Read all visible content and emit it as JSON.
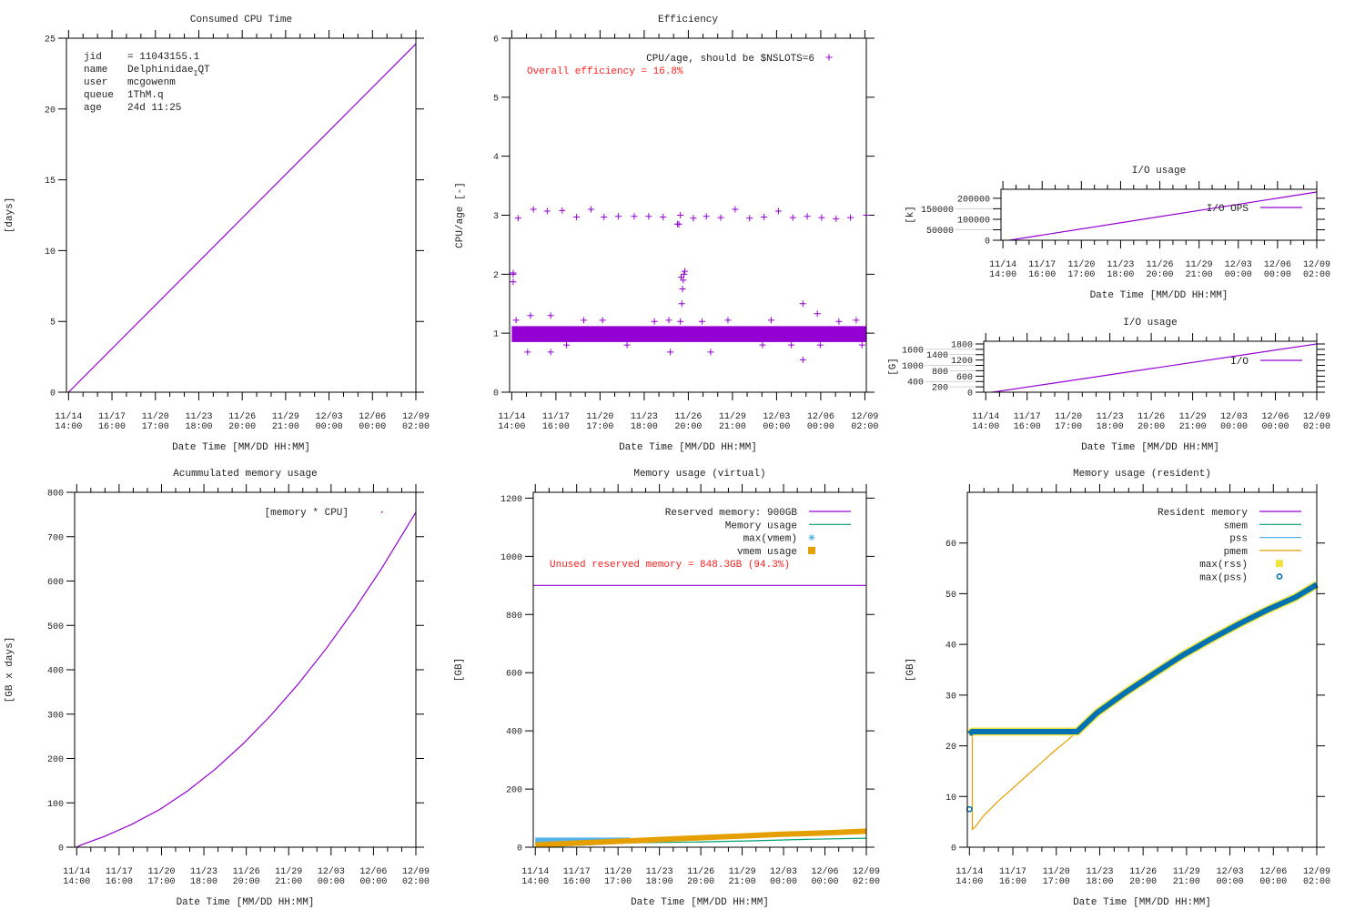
{
  "colors": {
    "purple": "#9400d3",
    "green": "#009e73",
    "lightblue": "#56b4e9",
    "orange": "#e69f00",
    "yellow": "#f0e442",
    "blue": "#0072b2",
    "red": "#ff2020"
  },
  "xtick_labels": [
    [
      "11/14",
      "14:00"
    ],
    [
      "11/17",
      "16:00"
    ],
    [
      "11/20",
      "17:00"
    ],
    [
      "11/23",
      "18:00"
    ],
    [
      "11/26",
      "20:00"
    ],
    [
      "11/29",
      "21:00"
    ],
    [
      "12/03",
      "00:00"
    ],
    [
      "12/06",
      "00:00"
    ],
    [
      "12/09",
      "02:00"
    ]
  ],
  "job_info": {
    "jid_key": "jid",
    "jid_val": "= 11043155.1",
    "name_key": "name",
    "name_main": "Delphinidae",
    "name_sub": "I",
    "name_rest": "QT",
    "user_key": "user",
    "user_val": "mcgowenm",
    "queue_key": "queue",
    "queue_val": "1ThM.q",
    "age_key": "age",
    "age_val": "24d 11:25"
  },
  "annotations": {
    "efficiency": "Overall efficiency = 16.8%",
    "unused": "Unused reserved memory = 848.3GB (94.3%)"
  },
  "chart_data": [
    {
      "id": "cpu",
      "type": "line",
      "title": "Consumed CPU Time",
      "xlabel": "Date Time [MM/DD HH:MM]",
      "ylabel": "[days]",
      "xlim": [
        -0.15,
        24.5
      ],
      "ylim": [
        0,
        25
      ],
      "yticks": [
        0,
        5,
        10,
        15,
        20,
        25
      ],
      "series": [
        {
          "name": "",
          "color": "purple",
          "style": "line",
          "x": [
            0,
            24.5
          ],
          "y": [
            0,
            24.6
          ]
        }
      ],
      "legend": []
    },
    {
      "id": "eff",
      "type": "scatter",
      "title": "Efficiency",
      "xlabel": "Date Time [MM/DD HH:MM]",
      "ylabel": "CPU/age [-]",
      "xlim": [
        -0.15,
        24.6
      ],
      "ylim": [
        0,
        6
      ],
      "yticks": [
        0,
        1,
        2,
        3,
        4,
        5,
        6
      ],
      "band": {
        "low": 0.85,
        "high": 1.12,
        "color": "purple"
      },
      "series": [
        {
          "name": "CPU/age, should be $NSLOTS=6",
          "color": "purple",
          "style": "plus",
          "x": [
            0.1,
            0.1,
            0.1,
            0.44,
            1.5,
            2.46,
            3.5,
            4.5,
            5.5,
            6.4,
            7.4,
            8.5,
            9.5,
            10.5,
            11.5,
            11.6,
            11.7,
            12.6,
            13.5,
            14.5,
            15.5,
            16.5,
            17.5,
            18.5,
            19.5,
            20.5,
            21.5,
            22.5,
            23.5,
            24.6,
            11.8,
            11.85,
            11.9,
            11.95,
            12.0,
            11.75,
            11.7,
            20.2,
            20.2,
            21.2,
            1.3,
            2.7,
            1.1,
            2.7,
            11.0,
            13.8,
            0.3,
            5.0,
            15.0,
            18.0,
            23.9,
            21.4,
            8.0,
            17.4,
            24.3,
            3.8,
            9.9,
            13.2,
            19.4,
            6.3,
            22.7,
            10.9
          ],
          "y": [
            2.0,
            2.02,
            1.87,
            2.95,
            3.1,
            3.07,
            3.08,
            2.97,
            3.1,
            2.97,
            2.98,
            2.98,
            2.98,
            2.97,
            2.85,
            2.85,
            3.0,
            2.95,
            2.98,
            2.96,
            3.1,
            2.95,
            2.97,
            3.07,
            2.96,
            2.98,
            2.96,
            2.94,
            2.96,
            3.0,
            1.5,
            1.75,
            1.9,
            2.0,
            2.05,
            1.95,
            1.2,
            0.55,
            1.5,
            1.33,
            1.3,
            1.3,
            0.68,
            0.68,
            0.68,
            0.68,
            1.22,
            1.22,
            1.22,
            1.22,
            1.22,
            0.8,
            0.8,
            0.8,
            0.8,
            0.8,
            1.2,
            1.2,
            0.8,
            1.22,
            1.2,
            1.22
          ]
        }
      ],
      "legend": [
        {
          "label": "CPU/age, should be $NSLOTS=6",
          "color": "purple",
          "style": "plus"
        }
      ]
    },
    {
      "id": "ioops",
      "type": "line",
      "title": "I/O usage",
      "xlabel": "Date Time [MM/DD HH:MM]",
      "ylabel": "[k]",
      "xlim": [
        -0.15,
        24.5
      ],
      "ylim": [
        0,
        243000
      ],
      "yticks": [
        0,
        50000,
        100000,
        150000,
        200000
      ],
      "series": [
        {
          "name": "I/O OPS",
          "color": "purple",
          "style": "line",
          "x": [
            0.5,
            24.5
          ],
          "y": [
            0,
            230000
          ]
        }
      ],
      "legend": [
        {
          "label": "I/O OPS",
          "color": "purple",
          "style": "line"
        }
      ]
    },
    {
      "id": "io",
      "type": "line",
      "title": "I/O usage",
      "xlabel": "Date Time [MM/DD HH:MM]",
      "ylabel": "[G]",
      "xlim": [
        -0.15,
        24.5
      ],
      "ylim": [
        0,
        1900
      ],
      "yticks": [
        0,
        200,
        400,
        600,
        800,
        1000,
        1200,
        1400,
        1600,
        1800
      ],
      "series": [
        {
          "name": "I/O",
          "color": "purple",
          "style": "line",
          "x": [
            0.5,
            24.5
          ],
          "y": [
            0,
            1800
          ]
        }
      ],
      "legend": [
        {
          "label": "I/O",
          "color": "purple",
          "style": "line"
        }
      ]
    },
    {
      "id": "accum",
      "type": "line",
      "title": "Acummulated memory usage",
      "xlabel": "Date Time [MM/DD HH:MM]",
      "ylabel": "[GB x days]",
      "xlim": [
        -0.15,
        24.5
      ],
      "ylim": [
        0,
        800
      ],
      "yticks": [
        0,
        100,
        200,
        300,
        400,
        500,
        600,
        700,
        800
      ],
      "series": [
        {
          "name": "[memory * CPU]",
          "color": "purple",
          "style": "line",
          "x": [
            0,
            0.3,
            2,
            4,
            6,
            8,
            10,
            12,
            14,
            16,
            18,
            20,
            22,
            24.5
          ],
          "y": [
            0,
            5,
            24.2,
            51.9,
            85.1,
            126.7,
            175.8,
            232.4,
            296.4,
            367.8,
            446.8,
            533.2,
            627.1,
            754.9
          ]
        }
      ],
      "legend": [
        {
          "label": "[memory * CPU]",
          "color": "purple",
          "style": "dot"
        }
      ]
    },
    {
      "id": "virt",
      "type": "line",
      "title": "Memory usage (virtual)",
      "xlabel": "Date Time [MM/DD HH:MM]",
      "ylabel": "[GB]",
      "xlim": [
        -0.15,
        24.5
      ],
      "ylim": [
        0,
        1220
      ],
      "yticks": [
        0,
        200,
        400,
        600,
        800,
        1000,
        1200
      ],
      "series": [
        {
          "name": "Reserved memory: 900GB",
          "color": "purple",
          "style": "line",
          "x": [
            -0.15,
            24.5
          ],
          "y": [
            900,
            900
          ]
        },
        {
          "name": "Memory usage",
          "color": "green",
          "style": "line",
          "x": [
            0,
            7,
            12,
            16,
            20,
            24.5
          ],
          "y": [
            0,
            15,
            18,
            22,
            27,
            31
          ]
        },
        {
          "name": "max(vmem)",
          "color": "lightblue",
          "style": "thick",
          "x": [
            0,
            7
          ],
          "y": [
            24,
            24
          ]
        },
        {
          "name": "vmem usage",
          "color": "orange",
          "style": "thick",
          "x": [
            0,
            2,
            4,
            6,
            8,
            10,
            12,
            14,
            16,
            18,
            20,
            22,
            24.5
          ],
          "y": [
            8,
            12,
            16,
            20,
            24,
            28,
            32,
            36,
            40,
            44,
            47,
            50,
            55
          ]
        }
      ],
      "legend": [
        {
          "label": "Reserved memory: 900GB",
          "color": "purple",
          "style": "line"
        },
        {
          "label": "Memory usage",
          "color": "green",
          "style": "line"
        },
        {
          "label": "max(vmem)",
          "color": "lightblue",
          "style": "star"
        },
        {
          "label": "vmem usage",
          "color": "orange",
          "style": "square"
        }
      ]
    },
    {
      "id": "res",
      "type": "line",
      "title": "Memory usage (resident)",
      "xlabel": "Date Time [MM/DD HH:MM]",
      "ylabel": "[GB]",
      "xlim": [
        -0.15,
        24.5
      ],
      "ylim": [
        0,
        70
      ],
      "yticks": [
        0,
        10,
        20,
        30,
        40,
        50,
        60
      ],
      "series": [
        {
          "name": "pmem",
          "color": "orange",
          "style": "line",
          "x": [
            0,
            0.2,
            0.2,
            0.4,
            1,
            2,
            3,
            4,
            5,
            6,
            7,
            7.6
          ],
          "y": [
            22,
            22.3,
            3.5,
            4,
            6.2,
            9,
            11.5,
            14,
            16.5,
            19,
            21.3,
            22.8
          ]
        },
        {
          "name": "max(rss)",
          "color": "yellow",
          "style": "thick2",
          "x": [
            0,
            0.2,
            7.6,
            9,
            11,
            13,
            15,
            17,
            19,
            21,
            23,
            24.5
          ],
          "y": [
            22.3,
            22.8,
            22.8,
            26.5,
            30.5,
            34.2,
            37.8,
            41,
            44,
            46.8,
            49.3,
            51.8
          ]
        },
        {
          "name": "max(pss)",
          "color": "blue",
          "style": "thick",
          "x": [
            0,
            0.2,
            7.6,
            9,
            11,
            13,
            15,
            17,
            19,
            21,
            23,
            24.5
          ],
          "y": [
            22.3,
            22.8,
            22.8,
            26.5,
            30.5,
            34.2,
            37.8,
            41,
            44,
            46.8,
            49.3,
            51.8
          ]
        },
        {
          "name": "max(pss) start",
          "color": "blue",
          "style": "circle",
          "x": [
            0
          ],
          "y": [
            7.5
          ]
        }
      ],
      "legend": [
        {
          "label": "Resident memory",
          "color": "purple",
          "style": "line"
        },
        {
          "label": "smem",
          "color": "green",
          "style": "line"
        },
        {
          "label": "pss",
          "color": "lightblue",
          "style": "line"
        },
        {
          "label": "pmem",
          "color": "orange",
          "style": "line"
        },
        {
          "label": "max(rss)",
          "color": "yellow",
          "style": "square"
        },
        {
          "label": "max(pss)",
          "color": "blue",
          "style": "circle"
        }
      ]
    }
  ]
}
